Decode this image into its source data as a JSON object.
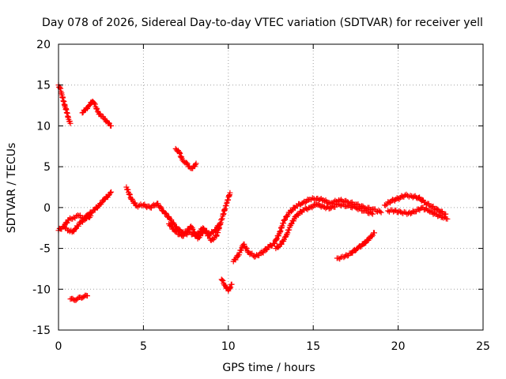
{
  "chart_data": {
    "type": "scatter",
    "title": "Day 078 of 2026, Sidereal Day-to-day VTEC variation (SDTVAR) for receiver yell",
    "xlabel": "GPS time / hours",
    "ylabel": "SDTVAR / TECUs",
    "xlim": [
      0,
      25
    ],
    "ylim": [
      -15,
      20
    ],
    "xticks": [
      0,
      5,
      10,
      15,
      20,
      25
    ],
    "yticks": [
      -15,
      -10,
      -5,
      0,
      5,
      10,
      15,
      20
    ],
    "grid": true,
    "marker": "plus",
    "color": "#ff0000",
    "series": [
      {
        "name": "top-left-descent",
        "x": [
          0.0,
          0.1,
          0.2,
          0.3,
          0.4,
          0.5,
          0.6,
          0.7
        ],
        "y": [
          15.0,
          14.6,
          13.8,
          13.0,
          12.3,
          11.6,
          10.8,
          10.3
        ]
      },
      {
        "name": "mid-left-arc",
        "x": [
          1.4,
          1.6,
          1.8,
          2.0,
          2.1,
          2.3,
          2.5,
          2.7,
          2.9,
          3.1
        ],
        "y": [
          11.6,
          12.0,
          12.5,
          13.0,
          12.8,
          11.8,
          11.2,
          10.9,
          10.4,
          10.0
        ]
      },
      {
        "name": "low-left-short",
        "x": [
          0.7,
          0.9,
          1.1,
          1.3,
          1.5,
          1.7
        ],
        "y": [
          -11.2,
          -11.3,
          -11.2,
          -11.0,
          -10.9,
          -10.8
        ]
      },
      {
        "name": "near-zero-left",
        "x": [
          0.0,
          0.3,
          0.6,
          0.9,
          1.2,
          1.5,
          1.8,
          2.1,
          2.4,
          2.7,
          3.0,
          3.1
        ],
        "y": [
          -2.8,
          -2.3,
          -1.5,
          -1.2,
          -1.0,
          -1.3,
          -0.8,
          -0.3,
          0.3,
          1.0,
          1.6,
          1.9
        ]
      },
      {
        "name": "near-zero-left-low",
        "x": [
          0.4,
          0.6,
          0.8,
          1.0,
          1.3,
          1.6,
          1.9
        ],
        "y": [
          -2.5,
          -2.8,
          -3.0,
          -2.6,
          -1.8,
          -1.4,
          -1.0
        ]
      },
      {
        "name": "small-arc-center",
        "x": [
          6.9,
          7.1,
          7.3,
          7.5,
          7.7,
          7.9,
          8.1
        ],
        "y": [
          7.2,
          6.8,
          5.8,
          5.5,
          5.0,
          4.8,
          5.4
        ]
      },
      {
        "name": "center-wiggle",
        "x": [
          4.0,
          4.3,
          4.6,
          5.0,
          5.4,
          5.8,
          6.2,
          6.6,
          7.0,
          7.4,
          7.8,
          8.2,
          8.6,
          9.0,
          9.3,
          9.6,
          9.9,
          10.1
        ],
        "y": [
          2.5,
          1.0,
          0.2,
          0.3,
          0.0,
          0.5,
          -0.5,
          -1.5,
          -2.6,
          -3.2,
          -2.3,
          -3.8,
          -2.8,
          -4.0,
          -3.5,
          -1.5,
          0.5,
          1.8
        ]
      },
      {
        "name": "center-wiggle-lower",
        "x": [
          6.5,
          6.9,
          7.3,
          7.7,
          8.1,
          8.5,
          8.9,
          9.2,
          9.5
        ],
        "y": [
          -2.0,
          -3.0,
          -3.5,
          -3.0,
          -3.5,
          -2.5,
          -3.3,
          -2.8,
          -2.0
        ]
      },
      {
        "name": "dip-at-ten",
        "x": [
          9.6,
          9.8,
          10.0,
          10.2
        ],
        "y": [
          -8.8,
          -9.5,
          -10.2,
          -9.4
        ]
      },
      {
        "name": "rise-after-ten",
        "x": [
          10.3,
          10.6,
          10.9,
          11.2,
          11.6,
          12.0,
          12.4,
          12.7,
          13.0,
          13.3,
          13.6,
          14.0,
          14.4,
          14.8,
          15.2,
          15.6,
          16.0,
          16.5,
          17.0,
          17.5,
          18.0,
          18.5,
          19.0
        ],
        "y": [
          -6.6,
          -5.8,
          -4.5,
          -5.5,
          -6.0,
          -5.5,
          -4.8,
          -4.4,
          -3.2,
          -1.5,
          -0.6,
          0.2,
          0.6,
          1.0,
          1.1,
          0.9,
          0.5,
          0.9,
          0.7,
          0.4,
          0.0,
          -0.2,
          -0.6
        ]
      },
      {
        "name": "rise-after-ten-lower",
        "x": [
          12.8,
          13.1,
          13.4,
          13.7,
          14.0,
          14.4,
          14.8,
          15.2,
          15.6,
          16.0,
          16.5,
          17.0,
          17.5,
          18.0,
          18.5
        ],
        "y": [
          -5.0,
          -4.5,
          -3.5,
          -2.0,
          -1.0,
          -0.3,
          0.0,
          0.4,
          0.1,
          -0.1,
          0.4,
          0.2,
          0.0,
          -0.4,
          -0.8
        ]
      },
      {
        "name": "lower-right-diagonal",
        "x": [
          16.4,
          16.8,
          17.2,
          17.6,
          18.0,
          18.3,
          18.6
        ],
        "y": [
          -6.2,
          -6.1,
          -5.6,
          -5.0,
          -4.4,
          -3.8,
          -3.1
        ]
      },
      {
        "name": "right-plateau",
        "x": [
          19.2,
          19.6,
          20.0,
          20.4,
          20.8,
          21.2,
          21.6,
          22.0,
          22.4,
          22.8
        ],
        "y": [
          0.3,
          0.8,
          1.1,
          1.5,
          1.4,
          1.2,
          0.6,
          0.1,
          -0.4,
          -0.8
        ]
      },
      {
        "name": "right-lower",
        "x": [
          19.4,
          19.8,
          20.2,
          20.6,
          21.0,
          21.4,
          21.8,
          22.2,
          22.6,
          22.9
        ],
        "y": [
          -0.4,
          -0.4,
          -0.6,
          -0.7,
          -0.5,
          0.0,
          -0.4,
          -0.8,
          -1.2,
          -1.4
        ]
      }
    ]
  }
}
